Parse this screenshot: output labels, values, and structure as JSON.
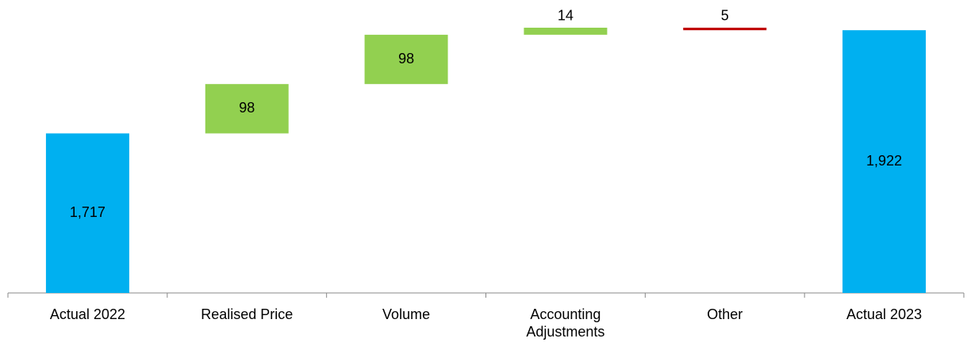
{
  "chart_data": {
    "type": "waterfall",
    "categories": [
      "Actual 2022",
      "Realised Price",
      "Volume",
      "Accounting Adjustments",
      "Other",
      "Actual 2023"
    ],
    "values": [
      1717,
      98,
      98,
      14,
      -5,
      1922
    ],
    "value_labels": [
      "1,717",
      "98",
      "98",
      "14",
      "5",
      "1,922"
    ],
    "measures": [
      "total",
      "relative",
      "relative",
      "relative",
      "relative",
      "total"
    ],
    "colors": {
      "total": "#00b0f0",
      "increase": "#92d050",
      "decrease": "#c00000"
    },
    "ylim": [
      1400,
      1960
    ]
  }
}
